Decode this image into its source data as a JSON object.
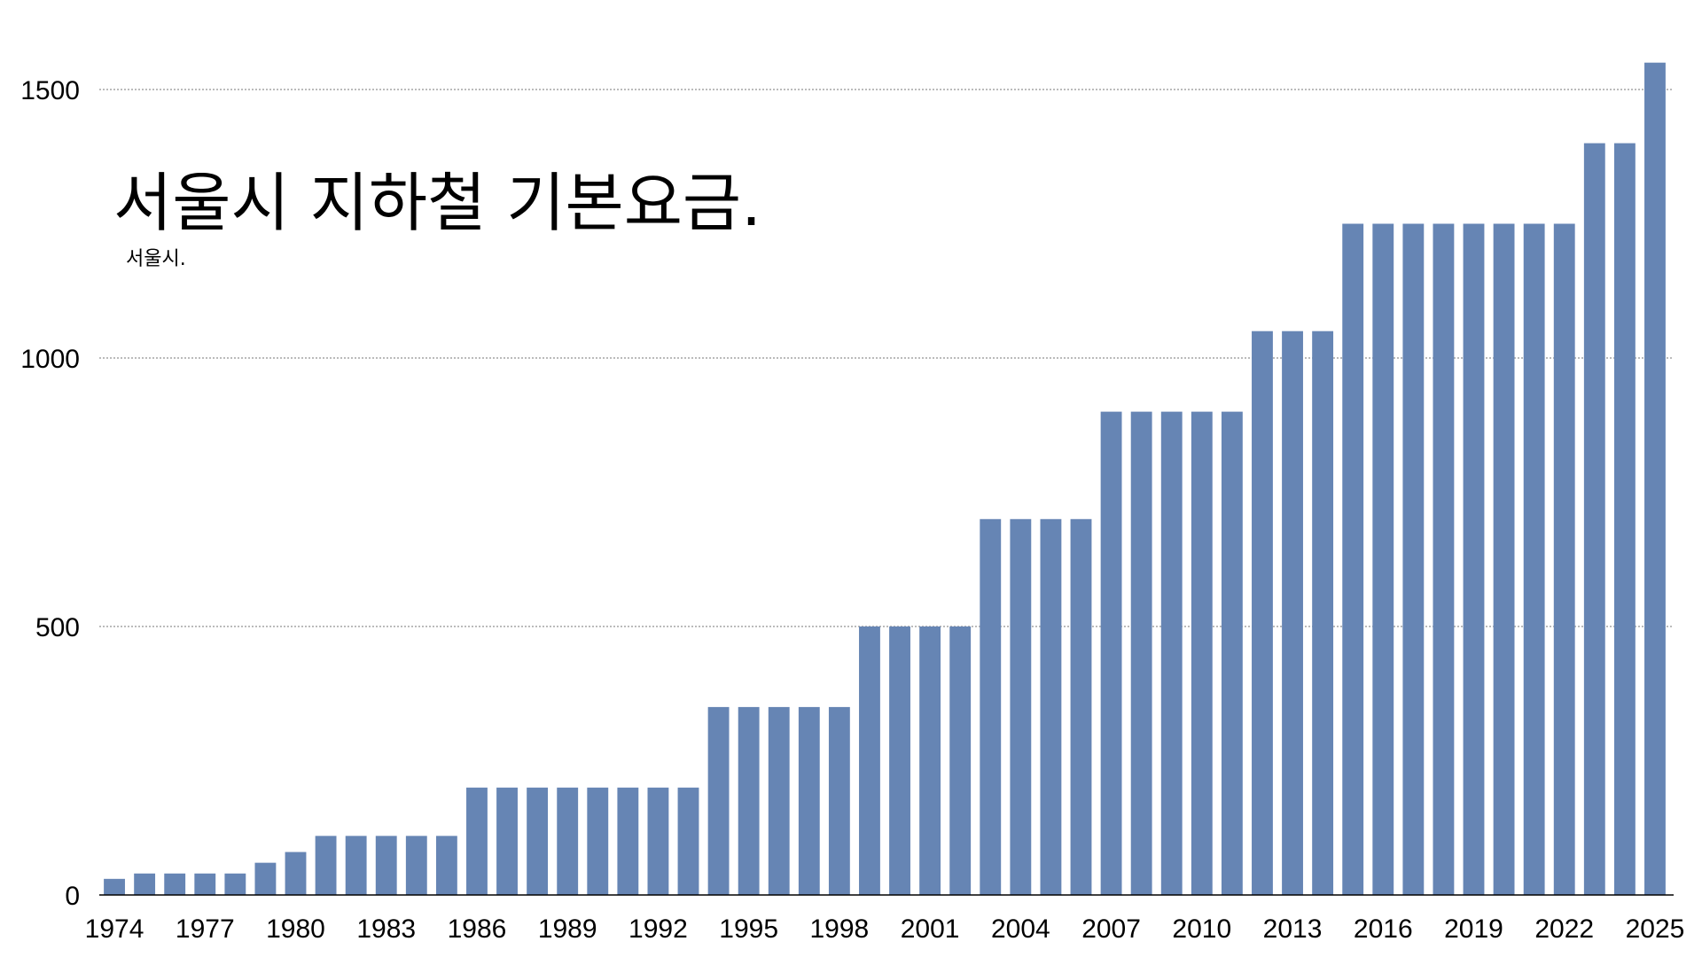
{
  "chart_data": {
    "type": "bar",
    "title": "서울시 지하철 기본요금.",
    "subtitle": "서울시.",
    "xlabel": "",
    "ylabel": "",
    "ylim": [
      0,
      1550
    ],
    "yticks": [
      "0",
      "500",
      "1000",
      "1500"
    ],
    "ytick_values": [
      0,
      500,
      1000,
      1500
    ],
    "grid": "horizontal dotted",
    "bar_color": "#6685B4",
    "categories": [
      "1974",
      "1975",
      "1976",
      "1977",
      "1978",
      "1979",
      "1980",
      "1981",
      "1982",
      "1983",
      "1984",
      "1985",
      "1986",
      "1987",
      "1988",
      "1989",
      "1990",
      "1991",
      "1992",
      "1993",
      "1994",
      "1995",
      "1996",
      "1997",
      "1998",
      "1999",
      "2000",
      "2001",
      "2002",
      "2003",
      "2004",
      "2005",
      "2006",
      "2007",
      "2008",
      "2009",
      "2010",
      "2011",
      "2012",
      "2013",
      "2014",
      "2015",
      "2016",
      "2017",
      "2018",
      "2019",
      "2020",
      "2021",
      "2022",
      "2023",
      "2024",
      "2025"
    ],
    "shown_xticks": [
      "1974",
      "1977",
      "1980",
      "1983",
      "1986",
      "1989",
      "1992",
      "1995",
      "1998",
      "2001",
      "2004",
      "2007",
      "2010",
      "2013",
      "2016",
      "2019",
      "2022",
      "2025"
    ],
    "values": [
      30,
      40,
      40,
      40,
      40,
      60,
      80,
      110,
      110,
      110,
      110,
      110,
      200,
      200,
      200,
      200,
      200,
      200,
      200,
      200,
      350,
      350,
      350,
      350,
      350,
      500,
      500,
      500,
      500,
      700,
      700,
      700,
      700,
      900,
      900,
      900,
      900,
      900,
      1050,
      1050,
      1050,
      1250,
      1250,
      1250,
      1250,
      1250,
      1250,
      1250,
      1250,
      1400,
      1400,
      1550
    ]
  }
}
